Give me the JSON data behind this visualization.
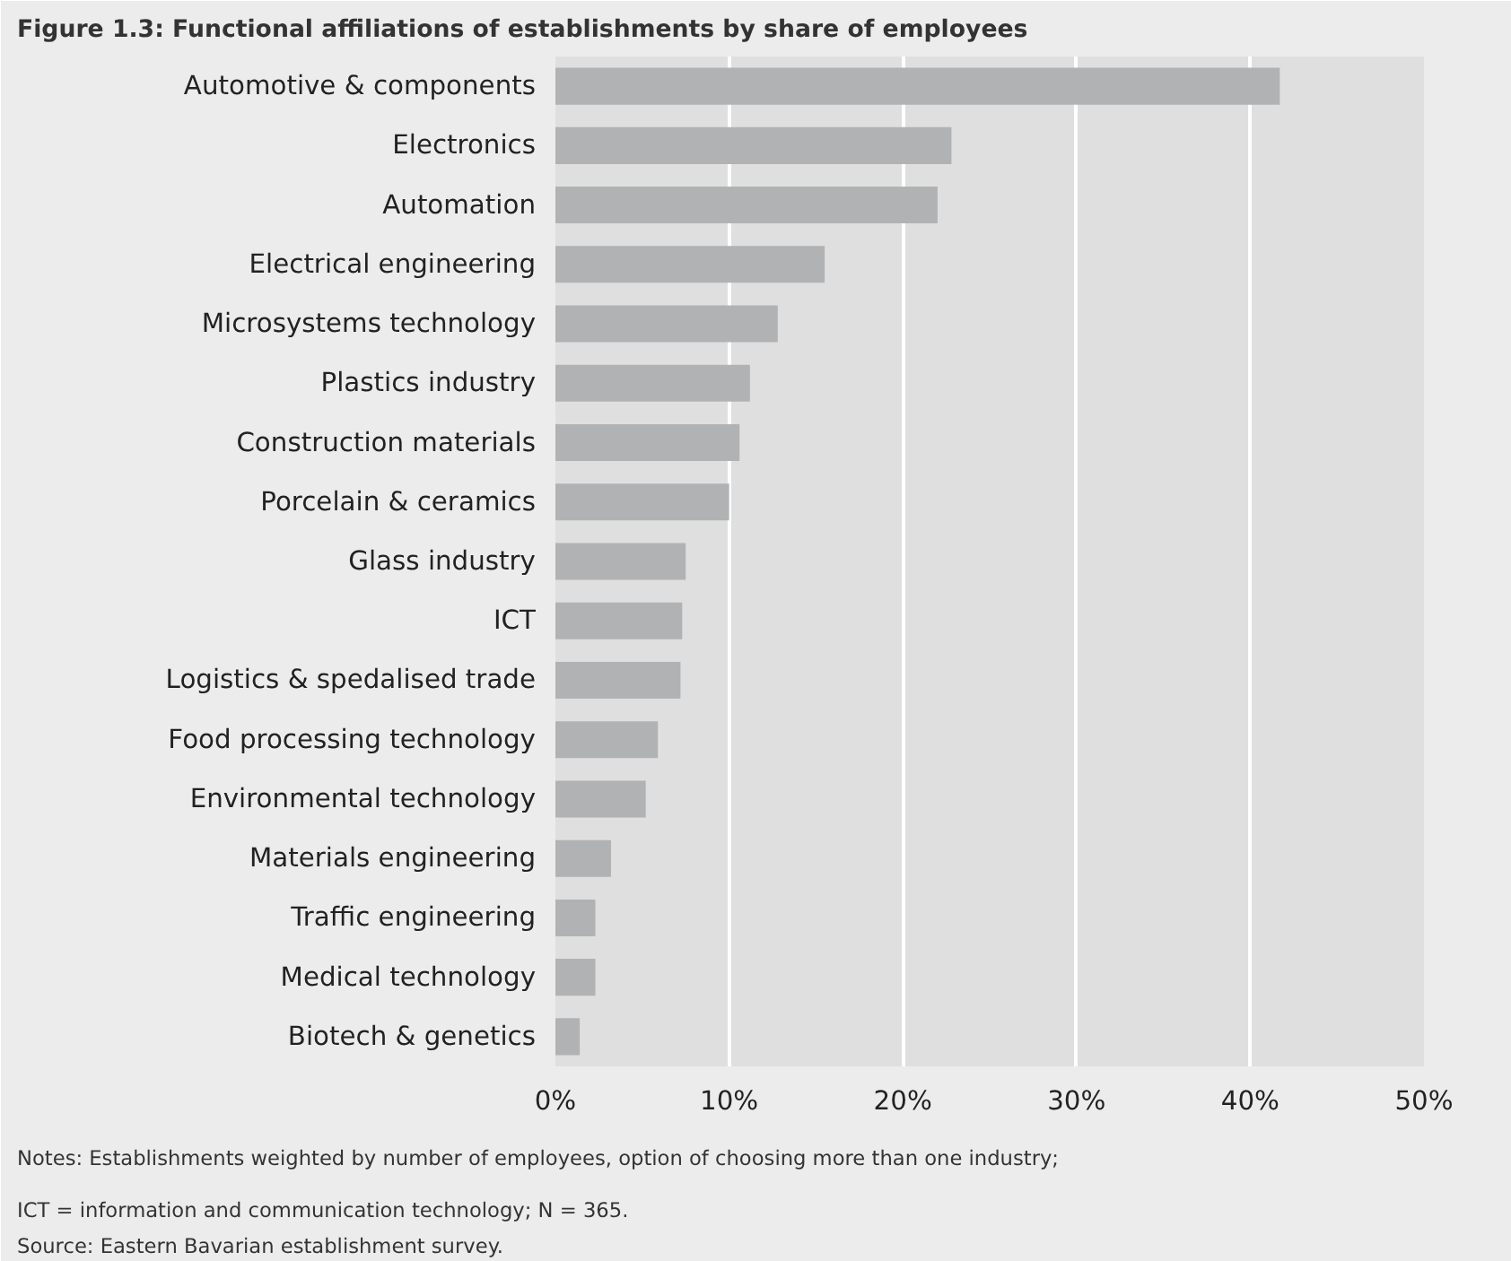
{
  "chart_data": {
    "type": "bar",
    "orientation": "horizontal",
    "title": "Figure 1.3: Functional affiliations of establishments by share of employees",
    "categories": [
      "Automotive & components",
      "Electronics",
      "Automation",
      "Electrical engineering",
      "Microsystems technology",
      "Plastics industry",
      "Construction materials",
      "Porcelain & ceramics",
      "Glass industry",
      "ICT",
      "Logistics & spedalised trade",
      "Food processing technology",
      "Environmental technology",
      "Materials engineering",
      "Traffic engineering",
      "Medical technology",
      "Biotech & genetics"
    ],
    "values": [
      41.7,
      22.8,
      22.0,
      15.5,
      12.8,
      11.2,
      10.6,
      10.0,
      7.5,
      7.3,
      7.2,
      5.9,
      5.2,
      3.2,
      2.3,
      2.3,
      1.4
    ],
    "color": "#b1b2b4",
    "xlim": [
      0,
      50
    ],
    "xticks": [
      {
        "value": 0,
        "label": "0%"
      },
      {
        "value": 10,
        "label": "10%"
      },
      {
        "value": 20,
        "label": "20%"
      },
      {
        "value": 30,
        "label": "30%"
      },
      {
        "value": 40,
        "label": "40%"
      },
      {
        "value": 50,
        "label": "50%"
      }
    ],
    "grid": "x",
    "annotations": [
      "Notes: Establishments weighted by number of employees, option of choosing more than one industry;",
      "ICT = information and communication technology; N = 365.",
      "Source: Eastern Bavarian establishment survey."
    ]
  }
}
